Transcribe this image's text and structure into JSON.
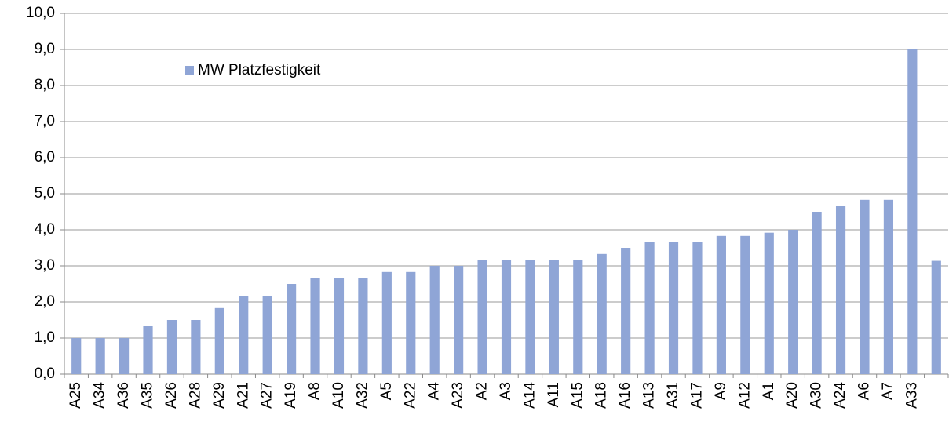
{
  "chart_data": {
    "type": "bar",
    "categories": [
      "A25",
      "A34",
      "A36",
      "A35",
      "A26",
      "A28",
      "A29",
      "A21",
      "A27",
      "A19",
      "A8",
      "A10",
      "A32",
      "A5",
      "A22",
      "A4",
      "A23",
      "A2",
      "A3",
      "A14",
      "A11",
      "A15",
      "A18",
      "A16",
      "A13",
      "A31",
      "A17",
      "A9",
      "A12",
      "A1",
      "A20",
      "A30",
      "A24",
      "A6",
      "A7",
      "A33",
      null
    ],
    "series": [
      {
        "name": "MW Platzfestigkeit",
        "color": "#8fa5d6",
        "values": [
          1.0,
          1.0,
          1.0,
          1.33,
          1.5,
          1.5,
          1.83,
          2.17,
          2.17,
          2.5,
          2.67,
          2.67,
          2.67,
          2.83,
          2.83,
          3.0,
          3.0,
          3.17,
          3.17,
          3.17,
          3.17,
          3.17,
          3.33,
          3.5,
          3.67,
          3.67,
          3.67,
          3.83,
          3.83,
          3.92,
          4.0,
          4.5,
          4.67,
          4.83,
          4.83,
          9.0,
          3.14
        ]
      }
    ],
    "ylim": [
      0,
      10
    ],
    "yticks": [
      {
        "value": 0,
        "label": "0,0"
      },
      {
        "value": 1,
        "label": "1,0"
      },
      {
        "value": 2,
        "label": "2,0"
      },
      {
        "value": 3,
        "label": "3,0"
      },
      {
        "value": 4,
        "label": "4,0"
      },
      {
        "value": 5,
        "label": "5,0"
      },
      {
        "value": 6,
        "label": "6,0"
      },
      {
        "value": 7,
        "label": "7,0"
      },
      {
        "value": 8,
        "label": "8,0"
      },
      {
        "value": 9,
        "label": "9,0"
      },
      {
        "value": 10,
        "label": "10,0"
      }
    ],
    "grid": true,
    "legend": "top-left"
  }
}
